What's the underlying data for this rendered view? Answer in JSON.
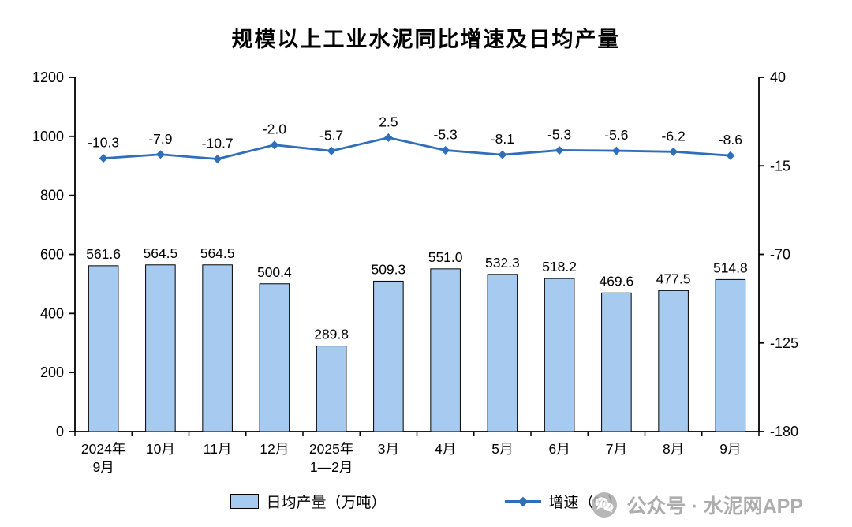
{
  "chart_data": {
    "type": "combo",
    "title": "规模以上工业水泥同比增速及日均产量",
    "categories": [
      "2024年\n9月",
      "10月",
      "11月",
      "12月",
      "2025年\n1—2月",
      "3月",
      "4月",
      "5月",
      "6月",
      "7月",
      "8月",
      "9月"
    ],
    "series": [
      {
        "name": "日均产量（万吨）",
        "type": "bar",
        "axis": "left",
        "values": [
          561.6,
          564.5,
          564.5,
          500.4,
          289.8,
          509.3,
          551.0,
          532.3,
          518.2,
          469.6,
          477.5,
          514.8
        ]
      },
      {
        "name": "增速（%）",
        "type": "line",
        "axis": "right",
        "values": [
          -10.3,
          -7.9,
          -10.7,
          -2.0,
          -5.7,
          2.5,
          -5.3,
          -8.1,
          -5.3,
          -5.6,
          -6.2,
          -8.6
        ]
      }
    ],
    "left_axis": {
      "min": 0,
      "max": 1200,
      "ticks": [
        0,
        200,
        400,
        600,
        800,
        1000,
        1200
      ]
    },
    "right_axis": {
      "min": -180,
      "max": 40,
      "ticks": [
        -180,
        -125,
        -70,
        -15,
        40
      ]
    },
    "grid": false,
    "legend_position": "bottom",
    "colors": {
      "bar_fill": "#A6CAF0",
      "bar_stroke": "#000000",
      "line": "#2F6EBA"
    }
  },
  "watermark": {
    "icon": "wechat-icon",
    "text": "公众号 · 水泥网APP"
  }
}
